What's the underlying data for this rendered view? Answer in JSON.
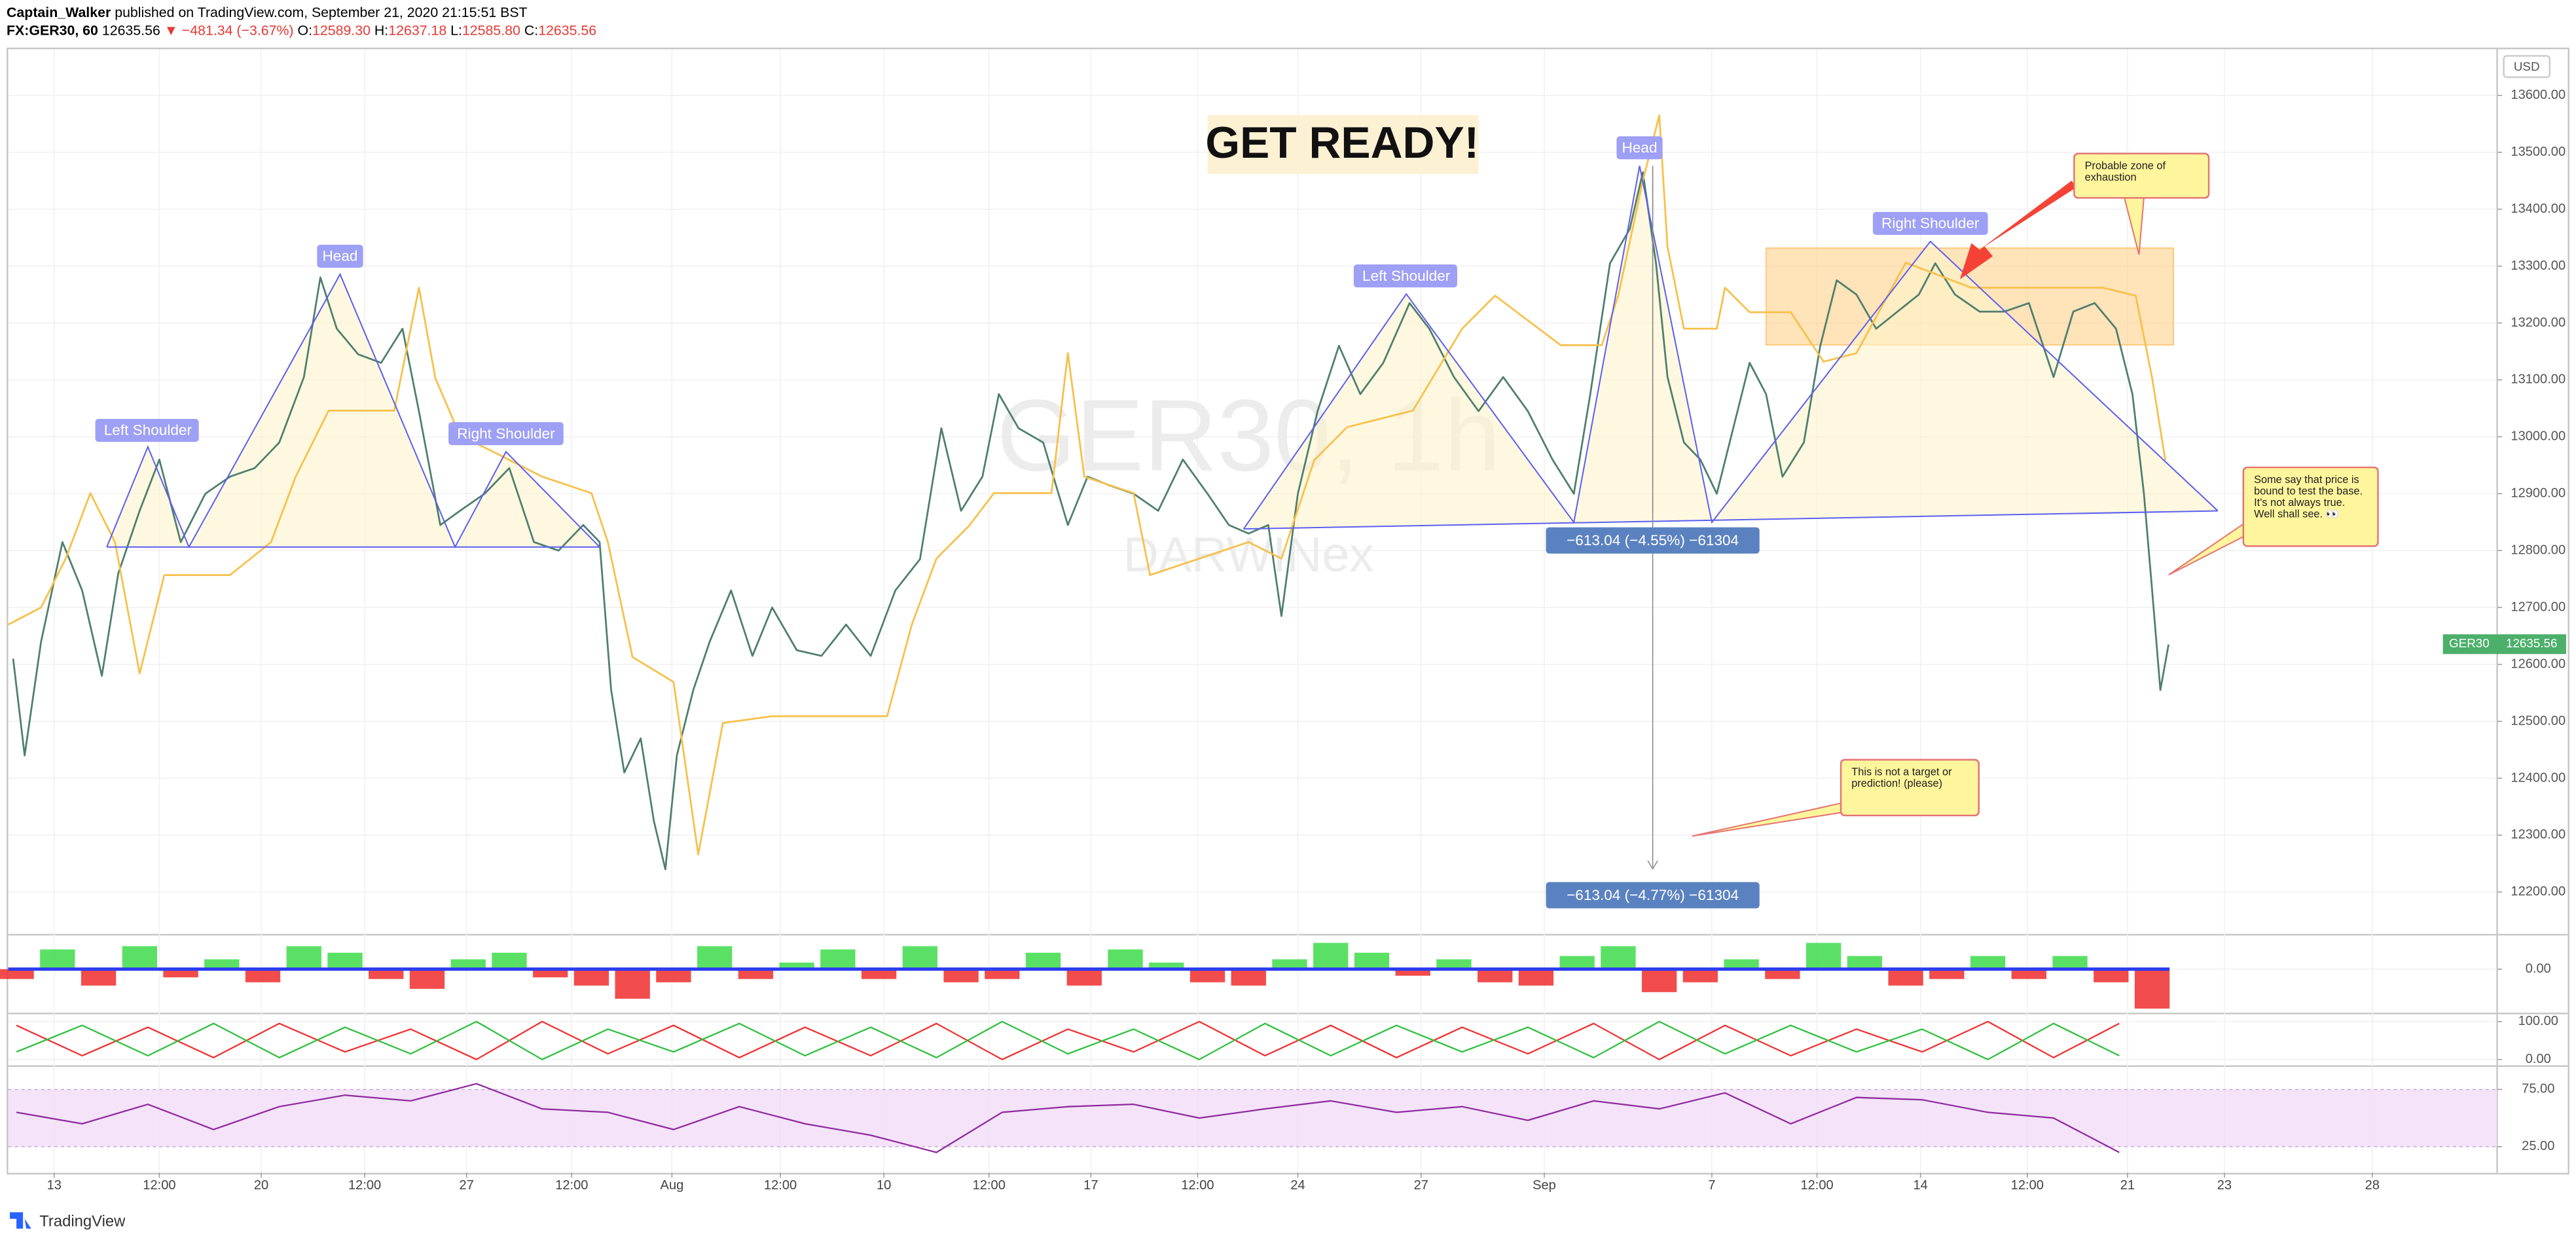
{
  "header": {
    "author": "Captain_Walker",
    "published": "published on TradingView.com, September 21, 2020 21:15:51 BST",
    "symbol": "FX:GER30, 60",
    "last": "12635.56",
    "change": "▼ −481.34 (−3.67%)",
    "ohlc": [
      [
        "O:",
        "12589.30"
      ],
      [
        "H:",
        "12637.18"
      ],
      [
        "L:",
        "12585.80"
      ],
      [
        "C:",
        "12635.56"
      ]
    ]
  },
  "footer": "TradingView",
  "chart_data": [
    {
      "type": "line",
      "currency": "USD",
      "grid": true,
      "xlim": [
        5,
        1520
      ],
      "ylim": [
        12128,
        13681
      ],
      "xticks": [
        {
          "value": 33,
          "label": "13"
        },
        {
          "value": 97,
          "label": "12:00"
        },
        {
          "value": 159,
          "label": "20"
        },
        {
          "value": 222,
          "label": "12:00"
        },
        {
          "value": 284,
          "label": "27"
        },
        {
          "value": 348,
          "label": "12:00"
        },
        {
          "value": 409,
          "label": "Aug"
        },
        {
          "value": 475,
          "label": "12:00"
        },
        {
          "value": 538,
          "label": "10"
        },
        {
          "value": 602,
          "label": "12:00"
        },
        {
          "value": 664,
          "label": "17"
        },
        {
          "value": 729,
          "label": "12:00"
        },
        {
          "value": 790,
          "label": "24"
        },
        {
          "value": 865,
          "label": "27"
        },
        {
          "value": 940,
          "label": "Sep"
        },
        {
          "value": 1042,
          "label": "7"
        },
        {
          "value": 1106,
          "label": "12:00"
        },
        {
          "value": 1169,
          "label": "14"
        },
        {
          "value": 1234,
          "label": "12:00"
        },
        {
          "value": 1295,
          "label": "21"
        },
        {
          "value": 1354,
          "label": "23"
        },
        {
          "value": 1444,
          "label": "28"
        }
      ],
      "yticks": [
        {
          "value": 12200,
          "label": "12200.00"
        },
        {
          "value": 12300,
          "label": "12300.00"
        },
        {
          "value": 12400,
          "label": "12400.00"
        },
        {
          "value": 12500,
          "label": "12500.00"
        },
        {
          "value": 12600,
          "label": "12600.00"
        },
        {
          "value": 12700,
          "label": "12700.00"
        },
        {
          "value": 12800,
          "label": "12800.00"
        },
        {
          "value": 12900,
          "label": "12900.00"
        },
        {
          "value": 13000,
          "label": "13000.00"
        },
        {
          "value": 13100,
          "label": "13100.00"
        },
        {
          "value": 13200,
          "label": "13200.00"
        },
        {
          "value": 13300,
          "label": "13300.00"
        },
        {
          "value": 13400,
          "label": "13400.00"
        },
        {
          "value": 13500,
          "label": "13500.00"
        },
        {
          "value": 13600,
          "label": "13600.00"
        }
      ],
      "series": [
        {
          "color": "#4f7f6e",
          "x": [
            8,
            15,
            25,
            38,
            50,
            62,
            72,
            85,
            97,
            110,
            125,
            140,
            155,
            170,
            185,
            195,
            205,
            218,
            232,
            245,
            255,
            268,
            280,
            295,
            310,
            325,
            340,
            355,
            365,
            372,
            380,
            390,
            398,
            405,
            412,
            422,
            432,
            445,
            458,
            470,
            485,
            500,
            515,
            530,
            545,
            560,
            573,
            585,
            598,
            608,
            620,
            635,
            650,
            662,
            675,
            690,
            705,
            720,
            735,
            748,
            760,
            772,
            780,
            790,
            802,
            815,
            828,
            842,
            858,
            870,
            885,
            900,
            915,
            930,
            945,
            958,
            968,
            980,
            992,
            1000,
            1008,
            1015,
            1025,
            1035,
            1045,
            1055,
            1065,
            1075,
            1085,
            1098,
            1108,
            1118,
            1130,
            1142,
            1155,
            1168,
            1178,
            1190,
            1205,
            1220,
            1235,
            1250,
            1262,
            1275,
            1288,
            1298,
            1305,
            1310,
            1315,
            1320
          ],
          "values": [
            12610,
            12440,
            12640,
            12815,
            12730,
            12580,
            12760,
            12870,
            12960,
            12815,
            12900,
            12930,
            12945,
            12990,
            13105,
            13280,
            13190,
            13145,
            13130,
            13190,
            13045,
            12845,
            12870,
            12900,
            12945,
            12815,
            12800,
            12845,
            12815,
            12555,
            12410,
            12470,
            12325,
            12240,
            12440,
            12555,
            12640,
            12730,
            12615,
            12700,
            12625,
            12615,
            12670,
            12615,
            12730,
            12785,
            13015,
            12870,
            12930,
            13075,
            13015,
            12990,
            12845,
            12930,
            12915,
            12900,
            12870,
            12960,
            12900,
            12845,
            12830,
            12845,
            12685,
            12900,
            13045,
            13160,
            13075,
            13130,
            13235,
            13190,
            13105,
            13045,
            13105,
            13045,
            12960,
            12900,
            13075,
            13305,
            13365,
            13465,
            13305,
            13105,
            12990,
            12960,
            12900,
            13015,
            13130,
            13075,
            12930,
            12990,
            13160,
            13275,
            13250,
            13190,
            13220,
            13250,
            13305,
            13250,
            13220,
            13220,
            13235,
            13105,
            13220,
            13235,
            13190,
            13075,
            12900,
            12730,
            12555,
            12635
          ]
        },
        {
          "color": "#f7c04a",
          "x": [
            5,
            25,
            40,
            55,
            70,
            85,
            100,
            140,
            165,
            180,
            200,
            240,
            255,
            265,
            280,
            300,
            330,
            360,
            370,
            385,
            410,
            425,
            440,
            470,
            540,
            555,
            570,
            590,
            605,
            640,
            650,
            660,
            690,
            700,
            730,
            760,
            780,
            800,
            820,
            860,
            890,
            910,
            950,
            975,
            985,
            1000,
            1010,
            1015,
            1025,
            1045,
            1050,
            1065,
            1090,
            1110,
            1130,
            1160,
            1200,
            1280,
            1300,
            1310,
            1318
          ],
          "values": [
            12670,
            12700,
            12786,
            12901,
            12815,
            12584,
            12757,
            12757,
            12815,
            12930,
            13046,
            13046,
            13262,
            13103,
            13002,
            12974,
            12930,
            12901,
            12815,
            12613,
            12569,
            12266,
            12497,
            12509,
            12509,
            12670,
            12786,
            12844,
            12901,
            12901,
            13147,
            12930,
            12901,
            12757,
            12786,
            12815,
            12786,
            12959,
            13017,
            13046,
            13190,
            13248,
            13161,
            13161,
            13248,
            13450,
            13565,
            13334,
            13190,
            13190,
            13262,
            13219,
            13219,
            13132,
            13147,
            13306,
            13262,
            13262,
            13248,
            13103,
            12959
          ]
        }
      ],
      "price_tag": {
        "symbol": "GER30",
        "value": 12635.56
      },
      "watermark": [
        "GER30, 1h",
        "DARWINex"
      ],
      "annotations": {
        "banner": "GET READY!",
        "pattern_labels": [
          "Left Shoulder",
          "Head",
          "Right Shoulder",
          "Left Shoulder",
          "Head",
          "Right Shoulder"
        ],
        "measures": [
          "−613.04 (−4.55%) −61304",
          "−613.04 (−4.77%) −61304"
        ],
        "notes": [
          "Probable zone of exhaustion",
          "Some say that price is bound to test the base. It's not always true. Well shall see. 👀",
          "This is not a target or prediction! (please)"
        ]
      }
    },
    {
      "type": "bar",
      "positive_color": "#3ddc4a",
      "negative_color": "#f02d2d",
      "xlim": [
        5,
        1520
      ],
      "ylim": [
        -25,
        20
      ],
      "yticks": [
        {
          "value": 0,
          "label": "0.00"
        }
      ],
      "x": [
        10,
        35,
        60,
        85,
        110,
        135,
        160,
        185,
        210,
        235,
        260,
        285,
        310,
        335,
        360,
        385,
        410,
        435,
        460,
        485,
        510,
        535,
        560,
        585,
        610,
        635,
        660,
        685,
        710,
        735,
        760,
        785,
        810,
        835,
        860,
        885,
        910,
        935,
        960,
        985,
        1010,
        1035,
        1060,
        1085,
        1110,
        1135,
        1160,
        1185,
        1210,
        1235,
        1260,
        1285,
        1310
      ],
      "values": [
        -6,
        12,
        -10,
        14,
        -5,
        6,
        -8,
        14,
        10,
        -6,
        -12,
        6,
        10,
        -5,
        -10,
        -18,
        -8,
        14,
        -6,
        4,
        12,
        -6,
        14,
        -8,
        -6,
        10,
        -10,
        12,
        4,
        -8,
        -10,
        6,
        16,
        10,
        -4,
        6,
        -8,
        -10,
        8,
        14,
        -14,
        -8,
        6,
        -6,
        16,
        8,
        -10,
        -6,
        8,
        -6,
        8,
        -8,
        -24
      ]
    },
    {
      "type": "line",
      "xlim": [
        5,
        1520
      ],
      "ylim": [
        -13,
        117
      ],
      "yticks": [
        {
          "value": 100,
          "label": "100.00"
        },
        {
          "value": 0,
          "label": "0.00"
        }
      ],
      "series": [
        {
          "color": "#f03030",
          "x": [
            10,
            50,
            90,
            130,
            170,
            210,
            250,
            290,
            330,
            370,
            410,
            450,
            490,
            530,
            570,
            610,
            650,
            690,
            730,
            770,
            810,
            850,
            890,
            930,
            970,
            1010,
            1050,
            1090,
            1130,
            1170,
            1210,
            1250,
            1290
          ],
          "values": [
            90,
            10,
            85,
            5,
            95,
            20,
            80,
            0,
            100,
            15,
            90,
            5,
            85,
            10,
            95,
            0,
            80,
            20,
            100,
            10,
            90,
            5,
            85,
            15,
            95,
            0,
            90,
            10,
            80,
            20,
            100,
            5,
            95
          ]
        },
        {
          "color": "#2fbf3f",
          "x": [
            10,
            50,
            90,
            130,
            170,
            210,
            250,
            290,
            330,
            370,
            410,
            450,
            490,
            530,
            570,
            610,
            650,
            690,
            730,
            770,
            810,
            850,
            890,
            930,
            970,
            1010,
            1050,
            1090,
            1130,
            1170,
            1210,
            1250,
            1290
          ],
          "values": [
            20,
            90,
            10,
            95,
            5,
            85,
            15,
            100,
            0,
            80,
            20,
            95,
            10,
            85,
            5,
            100,
            15,
            80,
            0,
            95,
            10,
            90,
            20,
            85,
            5,
            100,
            15,
            90,
            20,
            80,
            0,
            95,
            10
          ]
        }
      ]
    },
    {
      "type": "line",
      "xlim": [
        5,
        1520
      ],
      "ylim": [
        5,
        94
      ],
      "yticks": [
        {
          "value": 75,
          "label": "75.00"
        },
        {
          "value": 25,
          "label": "25.00"
        }
      ],
      "series": [
        {
          "color": "#8e2a9e",
          "x": [
            10,
            50,
            90,
            130,
            170,
            210,
            250,
            290,
            330,
            370,
            410,
            450,
            490,
            530,
            570,
            610,
            650,
            690,
            730,
            770,
            810,
            850,
            890,
            930,
            970,
            1010,
            1050,
            1090,
            1130,
            1170,
            1210,
            1250,
            1290
          ],
          "values": [
            55,
            45,
            62,
            40,
            60,
            70,
            65,
            80,
            58,
            55,
            40,
            60,
            45,
            35,
            20,
            55,
            60,
            62,
            50,
            58,
            65,
            55,
            60,
            48,
            65,
            58,
            72,
            45,
            68,
            66,
            55,
            50,
            20
          ]
        }
      ]
    }
  ]
}
